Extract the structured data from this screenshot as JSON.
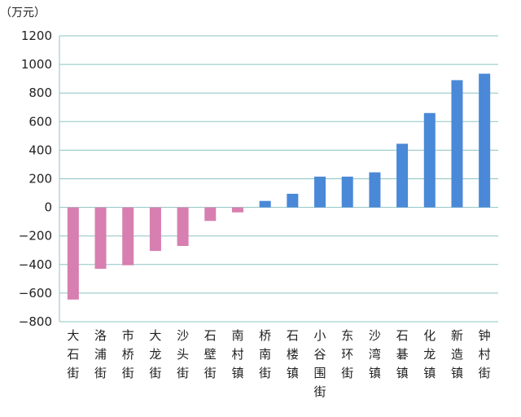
{
  "chart_data": {
    "type": "bar",
    "unit_label": "（万元）",
    "categories": [
      "大石街",
      "洛浦街",
      "市桥街",
      "大龙街",
      "沙头街",
      "石壁街",
      "南村镇",
      "桥南街",
      "石楼镇",
      "小谷围街",
      "东环街",
      "沙湾镇",
      "石碁镇",
      "化龙镇",
      "新造镇",
      "钟村街"
    ],
    "values": [
      -645,
      -430,
      -405,
      -305,
      -270,
      -95,
      -35,
      45,
      95,
      215,
      215,
      245,
      445,
      660,
      890,
      935
    ],
    "ylim": [
      -800,
      1200
    ],
    "yticks": [
      1200,
      1000,
      800,
      600,
      400,
      200,
      0,
      -200,
      -400,
      -600,
      -800
    ],
    "ytick_labels": [
      "1200",
      "1000",
      "800",
      "600",
      "400",
      "200",
      "0",
      "−200",
      "−400",
      "−600",
      "−800"
    ],
    "grid": true,
    "colors": {
      "positive": "#4a88d8",
      "negative": "#d77fb0",
      "grid": "#8ec3c3",
      "axis": "#8ec3c3"
    }
  }
}
